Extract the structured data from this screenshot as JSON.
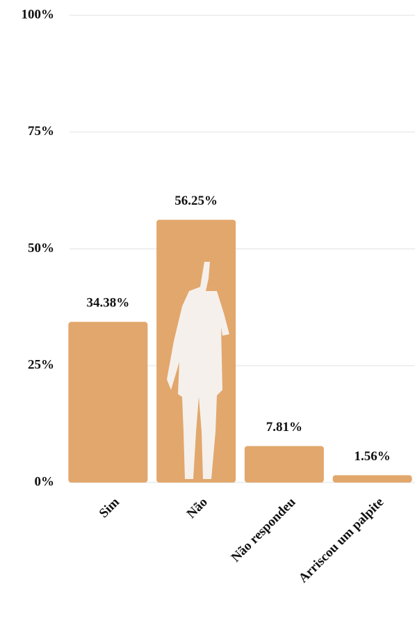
{
  "chart_data": {
    "type": "bar",
    "categories": [
      "Sim",
      "Não",
      "Não respondeu",
      "Arriscou um palpite"
    ],
    "values": [
      34.38,
      56.25,
      7.81,
      1.56
    ],
    "value_labels": [
      "34.38%",
      "56.25%",
      "7.81%",
      "1.56%"
    ],
    "color": "#e2a76c",
    "ylim": [
      0,
      100
    ],
    "yticks": [
      {
        "value": 0,
        "label": "0%"
      },
      {
        "value": 25,
        "label": "25%"
      },
      {
        "value": 50,
        "label": "50%"
      },
      {
        "value": 75,
        "label": "75%"
      },
      {
        "value": 100,
        "label": "100%"
      }
    ],
    "grid": true
  }
}
